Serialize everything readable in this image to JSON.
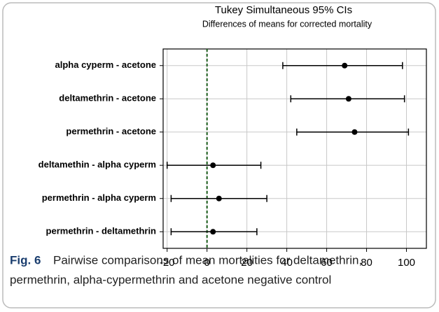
{
  "chart_data": {
    "type": "interval",
    "title": "Tukey Simultaneous 95% CIs",
    "subtitle": "Differences of means for corrected mortality",
    "categories": [
      "alpha cyperm - acetone",
      "deltamethrin - acetone",
      "permethrin - acetone",
      "deltamethin - alpha cyperm",
      "permethrin - alpha cyperm",
      "permethrin - deltamethrin"
    ],
    "estimates": [
      69,
      71,
      74,
      3,
      6,
      3
    ],
    "lower": [
      38,
      42,
      45,
      -20,
      -18,
      -18
    ],
    "upper": [
      98,
      99,
      101,
      27,
      30,
      25
    ],
    "color": "#000000",
    "reference_line": 0,
    "reference_color": "#1a5c1a",
    "xlim": [
      -22,
      110
    ],
    "xticks": [
      -20,
      0,
      20,
      40,
      60,
      80,
      100
    ],
    "grid": true
  },
  "caption": {
    "label": "Fig. 6",
    "lines": [
      "Pairwise comparisons of mean mortalities for deltamethrin,",
      "permethrin, alpha-cypermethrin and acetone negative control"
    ]
  }
}
